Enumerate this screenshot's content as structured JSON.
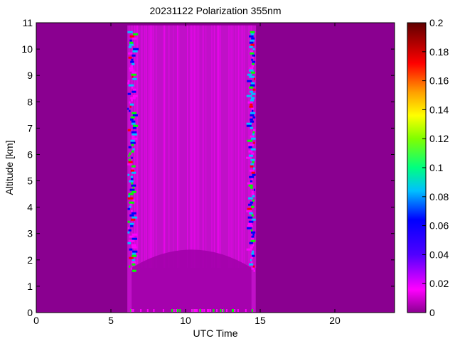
{
  "chart_data": {
    "type": "heatmap",
    "title": "20231122 Polarization 355nm",
    "xlabel": "UTC Time",
    "ylabel": "Altitude [km]",
    "xlim": [
      0,
      24
    ],
    "ylim": [
      0,
      11
    ],
    "xticks": [
      "0",
      "5",
      "10",
      "15",
      "20"
    ],
    "yticks": [
      "0",
      "1",
      "2",
      "3",
      "4",
      "5",
      "6",
      "7",
      "8",
      "9",
      "10",
      "11"
    ],
    "colorbar": {
      "range": [
        0,
        0.2
      ],
      "ticks": [
        "0",
        "0.02",
        "0.04",
        "0.06",
        "0.08",
        "0.1",
        "0.12",
        "0.14",
        "0.16",
        "0.18",
        "0.2"
      ]
    },
    "background_value": 0.01,
    "measurement_window": {
      "start_utc": 6.1,
      "end_utc": 14.7,
      "top_km": 10.9
    },
    "aerosol_layer_top_km": 1.7,
    "colors": {
      "background": "#8a0090",
      "interior": "#c010c8",
      "low": "#ff00ff",
      "mid": "#0000ff",
      "high": "#00ff00",
      "peak": "#ff0000"
    }
  }
}
